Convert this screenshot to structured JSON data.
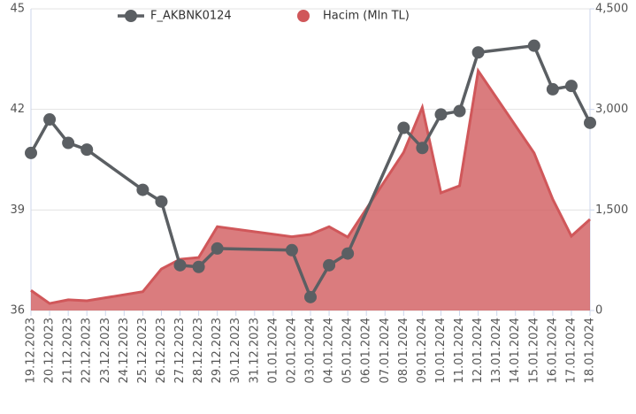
{
  "chart_data": {
    "type": "line-area",
    "categories": [
      "19.12.2023",
      "20.12.2023",
      "21.12.2023",
      "22.12.2023",
      "23.12.2023",
      "24.12.2023",
      "25.12.2023",
      "26.12.2023",
      "27.12.2023",
      "28.12.2023",
      "29.12.2023",
      "30.12.2023",
      "31.12.2023",
      "01.01.2024",
      "02.01.2024",
      "03.01.2024",
      "04.01.2024",
      "05.01.2024",
      "06.01.2024",
      "07.01.2024",
      "08.01.2024",
      "09.01.2024",
      "10.01.2024",
      "11.01.2024",
      "12.01.2024",
      "13.01.2024",
      "14.01.2024",
      "15.01.2024",
      "16.01.2024",
      "17.01.2024",
      "18.01.2024"
    ],
    "series": [
      {
        "name": "F_AKBNK0124",
        "type": "line",
        "color": "#5b5f63",
        "x": [
          "19.12.2023",
          "20.12.2023",
          "21.12.2023",
          "22.12.2023",
          "25.12.2023",
          "26.12.2023",
          "27.12.2023",
          "28.12.2023",
          "29.12.2023",
          "02.01.2024",
          "03.01.2024",
          "04.01.2024",
          "05.01.2024",
          "08.01.2024",
          "09.01.2024",
          "10.01.2024",
          "11.01.2024",
          "12.01.2024",
          "15.01.2024",
          "16.01.2024",
          "17.01.2024",
          "18.01.2024"
        ],
        "values": [
          40.7,
          41.7,
          41.0,
          40.8,
          39.6,
          39.25,
          37.35,
          37.3,
          37.85,
          37.8,
          36.4,
          37.35,
          37.7,
          41.45,
          40.85,
          41.85,
          41.95,
          43.7,
          43.9,
          42.6,
          42.7,
          41.6
        ]
      },
      {
        "name": "Hacim (Mln TL)",
        "type": "area",
        "axis": "y2",
        "color": "#d0575a",
        "x": [
          "19.12.2023",
          "20.12.2023",
          "21.12.2023",
          "22.12.2023",
          "25.12.2023",
          "26.12.2023",
          "27.12.2023",
          "28.12.2023",
          "29.12.2023",
          "02.01.2024",
          "03.01.2024",
          "04.01.2024",
          "05.01.2024",
          "08.01.2024",
          "09.01.2024",
          "10.01.2024",
          "11.01.2024",
          "12.01.2024",
          "15.01.2024",
          "16.01.2024",
          "17.01.2024",
          "18.01.2024"
        ],
        "values": [
          300,
          105,
          160,
          145,
          280,
          620,
          765,
          790,
          1250,
          1100,
          1135,
          1250,
          1095,
          2360,
          3030,
          1755,
          1860,
          3575,
          2350,
          1660,
          1110,
          1360
        ]
      }
    ],
    "ylim": [
      36,
      45
    ],
    "yticks": [
      36,
      39,
      42,
      45
    ],
    "y2lim": [
      0,
      4500
    ],
    "y2ticks": [
      0,
      {
        "value": 1500,
        "label": "1,500"
      },
      {
        "value": 3000,
        "label": "3,000"
      },
      {
        "value": 4500,
        "label": "4,500"
      }
    ],
    "grid": true,
    "legend": "top"
  }
}
